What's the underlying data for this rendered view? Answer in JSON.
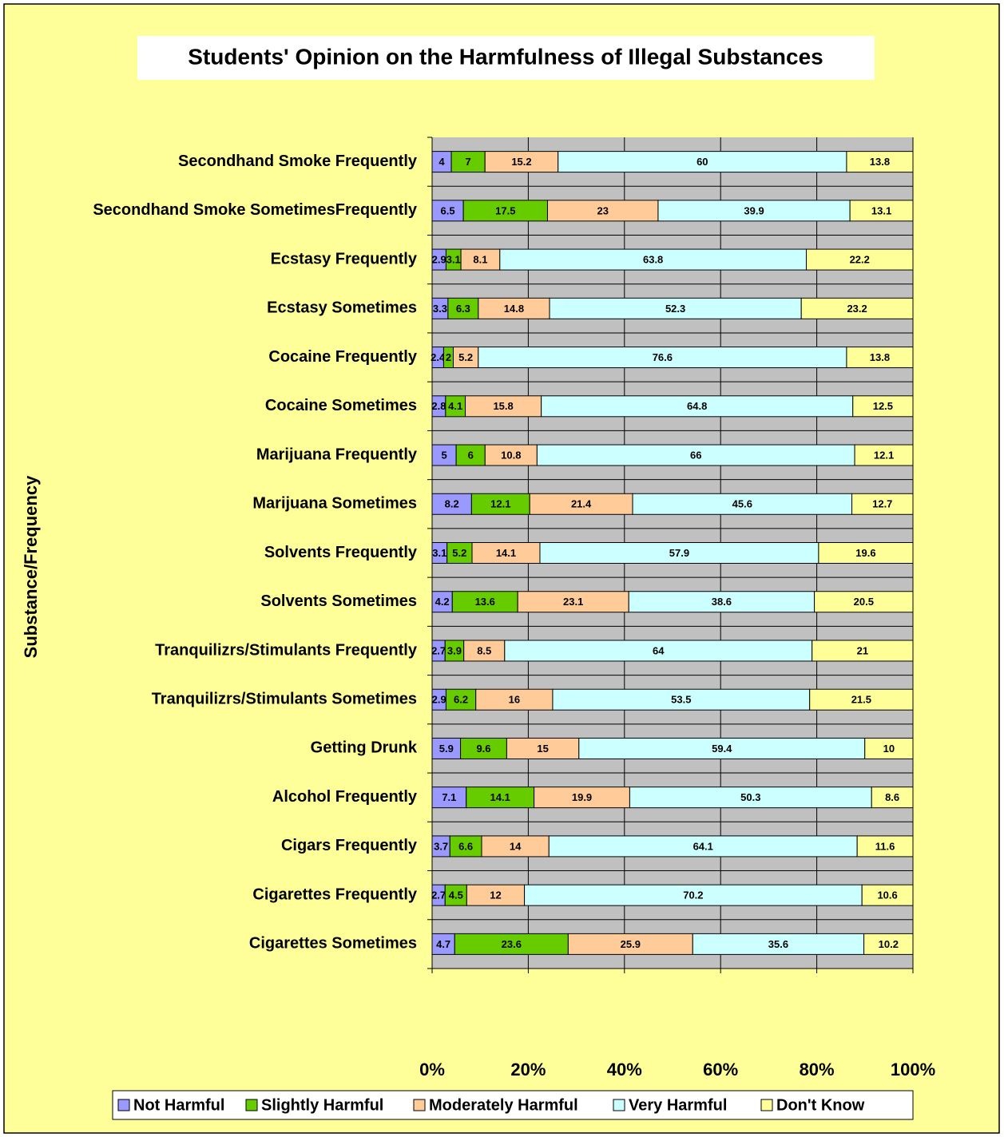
{
  "chart_data": {
    "type": "stacked_bar_100",
    "orientation": "horizontal",
    "title": "Students' Opinion on the Harmfulness of Illegal Substances",
    "y_label": "Substance/Frequency",
    "categories": [
      "Secondhand Smoke Frequently",
      "Secondhand Smoke SometimesFrequently",
      "Ecstasy Frequently",
      "Ecstasy Sometimes",
      "Cocaine Frequently",
      "Cocaine Sometimes",
      "Marijuana Frequently",
      "Marijuana Sometimes",
      "Solvents Frequently",
      "Solvents Sometimes",
      "Tranquilizrs/Stimulants Frequently",
      "Tranquilizrs/Stimulants Sometimes",
      "Getting Drunk",
      "Alcohol Frequently",
      "Cigars Frequently",
      "Cigarettes Frequently",
      "Cigarettes Sometimes"
    ],
    "series": [
      {
        "name": "Not Harmful",
        "color": "#9999ff",
        "values": [
          4,
          6.5,
          2.9,
          3.3,
          2.4,
          2.8,
          5,
          8.2,
          3.1,
          4.2,
          2.7,
          2.9,
          5.9,
          7.1,
          3.7,
          2.7,
          4.7
        ]
      },
      {
        "name": "Slightly Harmful",
        "color": "#66cc00",
        "values": [
          7,
          17.5,
          3.1,
          6.3,
          2,
          4.1,
          6,
          12.1,
          5.2,
          13.6,
          3.9,
          6.2,
          9.6,
          14.1,
          6.6,
          4.5,
          23.6
        ]
      },
      {
        "name": "Moderately Harmful",
        "color": "#ffcc99",
        "values": [
          15.2,
          23,
          8.1,
          14.8,
          5.2,
          15.8,
          10.8,
          21.4,
          14.1,
          23.1,
          8.5,
          16,
          15,
          19.9,
          14,
          12,
          25.9
        ]
      },
      {
        "name": "Very Harmful",
        "color": "#ccffff",
        "values": [
          60,
          39.9,
          63.8,
          52.3,
          76.6,
          64.8,
          66,
          45.6,
          57.9,
          38.6,
          64,
          53.5,
          59.4,
          50.3,
          64.1,
          70.2,
          35.6
        ]
      },
      {
        "name": "Don't Know",
        "color": "#ffff99",
        "values": [
          13.8,
          13.1,
          22.2,
          23.2,
          13.8,
          12.5,
          12.1,
          12.7,
          19.6,
          20.5,
          21,
          21.5,
          10,
          8.6,
          11.6,
          10.6,
          10.2
        ]
      }
    ],
    "xlim": [
      0,
      100
    ],
    "xticks": [
      {
        "value": 0,
        "label": "0%"
      },
      {
        "value": 20,
        "label": "20%"
      },
      {
        "value": 40,
        "label": "40%"
      },
      {
        "value": 60,
        "label": "60%"
      },
      {
        "value": 80,
        "label": "80%"
      },
      {
        "value": 100,
        "label": "100%"
      }
    ],
    "grid": true,
    "legend": "bottom"
  }
}
